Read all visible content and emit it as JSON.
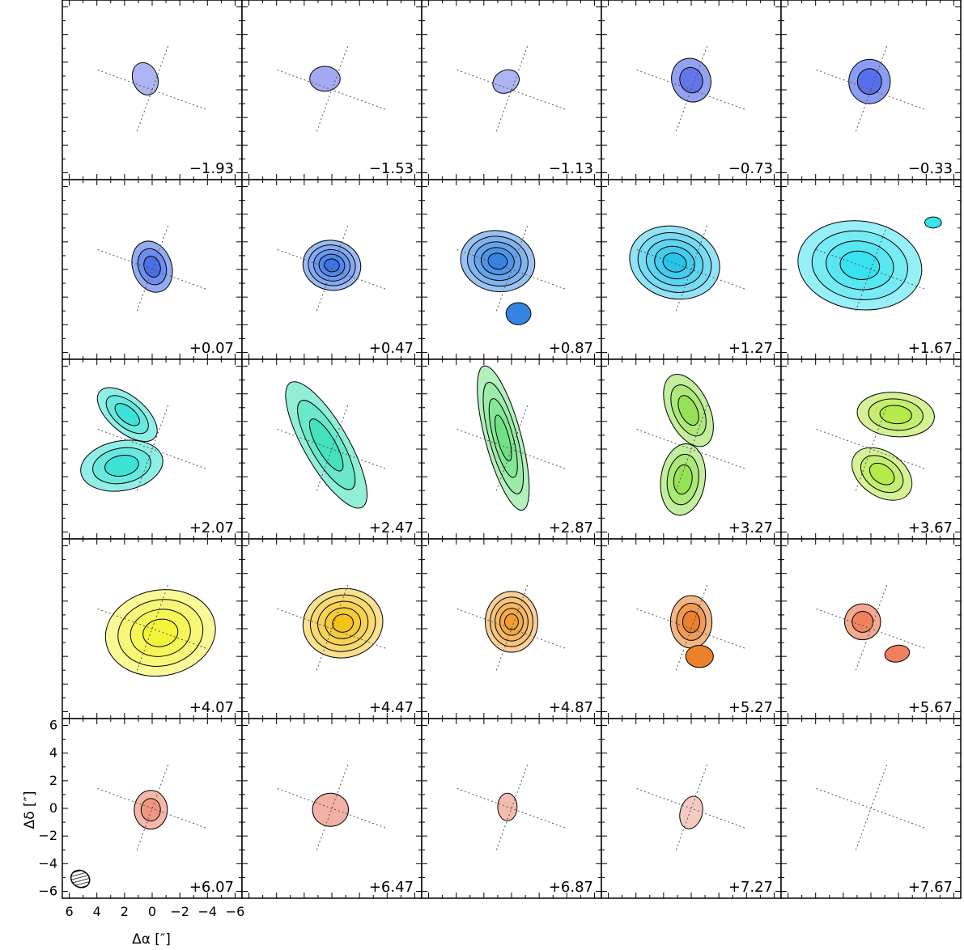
{
  "chart_data": {
    "type": "channel_map",
    "layout": {
      "rows": 5,
      "cols": 5
    },
    "channels": [
      {
        "label": "−1.93",
        "color": "#aab0f0",
        "blobs": [
          {
            "x": 0.5,
            "y": 0.8,
            "a": 0.9,
            "b": 1.2,
            "rot": -20,
            "levels": 1
          }
        ]
      },
      {
        "label": "−1.53",
        "color": "#9fa6f0",
        "blobs": [
          {
            "x": 0.5,
            "y": 0.8,
            "a": 1.1,
            "b": 0.9,
            "rot": 0,
            "levels": 1
          }
        ]
      },
      {
        "label": "−1.13",
        "color": "#a9b0f2",
        "blobs": [
          {
            "x": 0.4,
            "y": 0.6,
            "a": 1.0,
            "b": 0.8,
            "rot": -30,
            "levels": 1
          }
        ]
      },
      {
        "label": "−0.73",
        "color": "#5a6ee8",
        "blobs": [
          {
            "x": 0.0,
            "y": 0.7,
            "a": 1.4,
            "b": 1.6,
            "rot": -20,
            "levels": 2
          }
        ]
      },
      {
        "label": "−0.33",
        "color": "#4d68ea",
        "blobs": [
          {
            "x": 0.1,
            "y": 0.6,
            "a": 1.5,
            "b": 1.6,
            "rot": 0,
            "levels": 2
          }
        ]
      },
      {
        "label": "+0.07",
        "color": "#3f67e6",
        "blobs": [
          {
            "x": 0.0,
            "y": 0.2,
            "a": 1.4,
            "b": 1.9,
            "rot": -20,
            "levels": 3
          }
        ]
      },
      {
        "label": "+0.47",
        "color": "#2f6ee6",
        "blobs": [
          {
            "x": 0.0,
            "y": 0.3,
            "a": 2.1,
            "b": 1.8,
            "rot": 10,
            "levels": 5
          }
        ]
      },
      {
        "label": "+0.87",
        "color": "#2b7ee0",
        "blobs": [
          {
            "x": 1.0,
            "y": 0.6,
            "a": 2.7,
            "b": 2.2,
            "rot": 10,
            "levels": 5
          },
          {
            "x": -0.5,
            "y": -3.2,
            "a": 0.9,
            "b": 0.8,
            "rot": 0,
            "levels": 1
          }
        ]
      },
      {
        "label": "+1.27",
        "color": "#1cc2ea",
        "blobs": [
          {
            "x": 1.2,
            "y": 0.5,
            "a": 3.3,
            "b": 2.6,
            "rot": 15,
            "levels": 5
          }
        ]
      },
      {
        "label": "+1.67",
        "color": "#2ee0ee",
        "blobs": [
          {
            "x": 0.8,
            "y": 0.3,
            "a": 4.5,
            "b": 3.2,
            "rot": 8,
            "levels": 4
          },
          {
            "x": -4.5,
            "y": 3.4,
            "a": 0.6,
            "b": 0.4,
            "rot": 0,
            "levels": 1
          }
        ]
      },
      {
        "label": "+2.07",
        "color": "#35e0d4",
        "blobs": [
          {
            "x": 1.8,
            "y": 2.5,
            "a": 2.6,
            "b": 1.3,
            "rot": 40,
            "levels": 3
          },
          {
            "x": 2.2,
            "y": -1.2,
            "a": 3.0,
            "b": 1.8,
            "rot": -10,
            "levels": 3
          }
        ]
      },
      {
        "label": "+2.47",
        "color": "#3ae0b8",
        "blobs": [
          {
            "x": 0.4,
            "y": 0.3,
            "a": 1.6,
            "b": 5.2,
            "rot": -30,
            "levels": 3
          }
        ]
      },
      {
        "label": "+2.87",
        "color": "#66e07a",
        "blobs": [
          {
            "x": 0.6,
            "y": 0.8,
            "a": 1.3,
            "b": 5.4,
            "rot": -15,
            "levels": 4
          }
        ]
      },
      {
        "label": "+3.27",
        "color": "#90e04e",
        "blobs": [
          {
            "x": 0.2,
            "y": 2.8,
            "a": 1.5,
            "b": 2.8,
            "rot": -25,
            "levels": 3
          },
          {
            "x": 0.6,
            "y": -2.2,
            "a": 1.6,
            "b": 2.6,
            "rot": 8,
            "levels": 3
          }
        ]
      },
      {
        "label": "+3.67",
        "color": "#b2e840",
        "blobs": [
          {
            "x": -1.8,
            "y": 2.5,
            "a": 2.8,
            "b": 1.6,
            "rot": 5,
            "levels": 3
          },
          {
            "x": -0.8,
            "y": -1.8,
            "a": 2.4,
            "b": 1.6,
            "rot": 35,
            "levels": 3
          }
        ]
      },
      {
        "label": "+4.07",
        "color": "#f2f22e",
        "blobs": [
          {
            "x": -0.6,
            "y": -0.3,
            "a": 4.0,
            "b": 3.1,
            "rot": -10,
            "levels": 4
          }
        ]
      },
      {
        "label": "+4.47",
        "color": "#f2c010",
        "blobs": [
          {
            "x": -0.8,
            "y": 0.4,
            "a": 2.9,
            "b": 2.5,
            "rot": -10,
            "levels": 5
          }
        ]
      },
      {
        "label": "+4.87",
        "color": "#f09a24",
        "blobs": [
          {
            "x": 0.0,
            "y": 0.5,
            "a": 1.9,
            "b": 2.2,
            "rot": 0,
            "levels": 5
          }
        ]
      },
      {
        "label": "+5.27",
        "color": "#ea7a20",
        "blobs": [
          {
            "x": 0.0,
            "y": 0.5,
            "a": 1.5,
            "b": 1.9,
            "rot": 0,
            "levels": 3
          },
          {
            "x": -0.6,
            "y": -2.0,
            "a": 1.0,
            "b": 0.8,
            "rot": 0,
            "levels": 1
          }
        ]
      },
      {
        "label": "+5.67",
        "color": "#ee7a55",
        "blobs": [
          {
            "x": 0.6,
            "y": 0.5,
            "a": 1.3,
            "b": 1.3,
            "rot": 0,
            "levels": 2
          },
          {
            "x": -1.9,
            "y": -1.8,
            "a": 0.9,
            "b": 0.6,
            "rot": -10,
            "levels": 1
          }
        ]
      },
      {
        "label": "+6.07",
        "color": "#f0907a",
        "blobs": [
          {
            "x": 0.1,
            "y": -0.1,
            "a": 1.2,
            "b": 1.4,
            "rot": 0,
            "levels": 2
          }
        ]
      },
      {
        "label": "+6.47",
        "color": "#f0aea0",
        "blobs": [
          {
            "x": 0.1,
            "y": -0.1,
            "a": 1.3,
            "b": 1.2,
            "rot": 0,
            "levels": 1
          }
        ]
      },
      {
        "label": "+6.87",
        "color": "#f2b8ab",
        "blobs": [
          {
            "x": 0.3,
            "y": 0.1,
            "a": 0.7,
            "b": 1.0,
            "rot": 0,
            "levels": 1
          }
        ]
      },
      {
        "label": "+7.27",
        "color": "#f4c8be",
        "blobs": [
          {
            "x": 0.0,
            "y": -0.3,
            "a": 0.8,
            "b": 1.2,
            "rot": 15,
            "levels": 1
          }
        ]
      },
      {
        "label": "+7.67",
        "color": "#ffffff",
        "blobs": []
      }
    ],
    "xaxis": {
      "label": "Δα [″]",
      "lim": [
        6.5,
        -6.5
      ],
      "ticks": [
        6,
        4,
        2,
        0,
        -2,
        -4,
        -6
      ],
      "tick_labels": [
        "6",
        "4",
        "2",
        "0",
        "−2",
        "−4",
        "−6"
      ]
    },
    "yaxis": {
      "label": "Δδ [″]",
      "lim": [
        -6.5,
        6.5
      ],
      "ticks": [
        6,
        4,
        2,
        0,
        -2,
        -4,
        -6
      ],
      "tick_labels": [
        "6",
        "4",
        "2",
        "0",
        "−2",
        "−4",
        "−6"
      ]
    },
    "beam": {
      "x": 5.2,
      "y": -5.1,
      "a": 0.7,
      "b": 0.6,
      "rot": 30
    },
    "reference_lines": {
      "major_angle": 20,
      "length": 4.2
    }
  }
}
